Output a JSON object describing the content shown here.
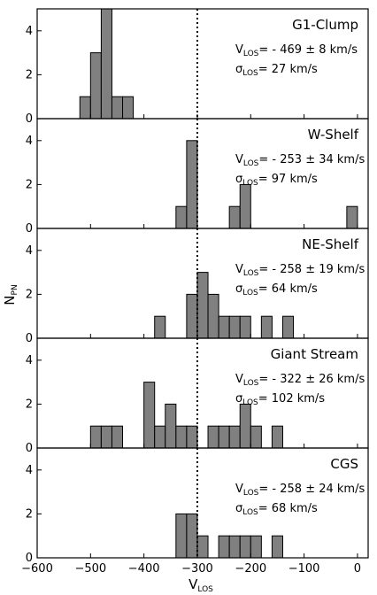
{
  "chart_data": {
    "type": "bar",
    "figure_type": "stacked-histograms",
    "shared_x": true,
    "xlabel": "V",
    "xlabel_sub": "LOS",
    "ylabel": "N",
    "ylabel_sub": "PN",
    "xlim": [
      -600,
      20
    ],
    "ylim": [
      0,
      5
    ],
    "xticks": [
      -600,
      -500,
      -400,
      -300,
      -200,
      -100,
      0
    ],
    "xtick_labels": [
      "−600",
      "−500",
      "−400",
      "−300",
      "−200",
      "−100",
      "0"
    ],
    "yticks": [
      0,
      2,
      4
    ],
    "ytick_labels": [
      "0",
      "2",
      "4"
    ],
    "bin_width": 20,
    "reference_line_x": -300,
    "bar_color": "#808080",
    "panels": [
      {
        "name": "G1-Clump",
        "stat_v_prefix": "V",
        "stat_v_sub": "LOS",
        "stat_v_value": "= - 469 ± 8 km/s",
        "stat_s_prefix": "σ",
        "stat_s_sub": "LOS",
        "stat_s_value": "= 27 km/s",
        "bins": [
          [
            -520,
            1
          ],
          [
            -500,
            3
          ],
          [
            -480,
            5
          ],
          [
            -460,
            1
          ],
          [
            -440,
            1
          ]
        ]
      },
      {
        "name": "W-Shelf",
        "stat_v_prefix": "V",
        "stat_v_sub": "LOS",
        "stat_v_value": "= - 253 ± 34 km/s",
        "stat_s_prefix": "σ",
        "stat_s_sub": "LOS",
        "stat_s_value": "= 97 km/s",
        "bins": [
          [
            -340,
            1
          ],
          [
            -320,
            4
          ],
          [
            -240,
            1
          ],
          [
            -220,
            2
          ],
          [
            -20,
            1
          ]
        ]
      },
      {
        "name": "NE-Shelf",
        "stat_v_prefix": "V",
        "stat_v_sub": "LOS",
        "stat_v_value": "= - 258 ± 19 km/s",
        "stat_s_prefix": "σ",
        "stat_s_sub": "LOS",
        "stat_s_value": "= 64 km/s",
        "bins": [
          [
            -380,
            1
          ],
          [
            -320,
            2
          ],
          [
            -300,
            3
          ],
          [
            -280,
            2
          ],
          [
            -260,
            1
          ],
          [
            -240,
            1
          ],
          [
            -220,
            1
          ],
          [
            -180,
            1
          ],
          [
            -140,
            1
          ]
        ]
      },
      {
        "name": "Giant Stream",
        "stat_v_prefix": "V",
        "stat_v_sub": "LOS",
        "stat_v_value": "= - 322 ± 26 km/s",
        "stat_s_prefix": "σ",
        "stat_s_sub": "LOS",
        "stat_s_value": "= 102 km/s",
        "bins": [
          [
            -500,
            1
          ],
          [
            -480,
            1
          ],
          [
            -460,
            1
          ],
          [
            -400,
            3
          ],
          [
            -380,
            1
          ],
          [
            -360,
            2
          ],
          [
            -340,
            1
          ],
          [
            -320,
            1
          ],
          [
            -280,
            1
          ],
          [
            -260,
            1
          ],
          [
            -240,
            1
          ],
          [
            -220,
            2
          ],
          [
            -200,
            1
          ],
          [
            -160,
            1
          ]
        ]
      },
      {
        "name": "CGS",
        "stat_v_prefix": "V",
        "stat_v_sub": "LOS",
        "stat_v_value": "= - 258 ± 24 km/s",
        "stat_s_prefix": "σ",
        "stat_s_sub": "LOS",
        "stat_s_value": "= 68 km/s",
        "bins": [
          [
            -340,
            2
          ],
          [
            -320,
            2
          ],
          [
            -300,
            1
          ],
          [
            -260,
            1
          ],
          [
            -240,
            1
          ],
          [
            -220,
            1
          ],
          [
            -200,
            1
          ],
          [
            -160,
            1
          ]
        ]
      }
    ]
  }
}
